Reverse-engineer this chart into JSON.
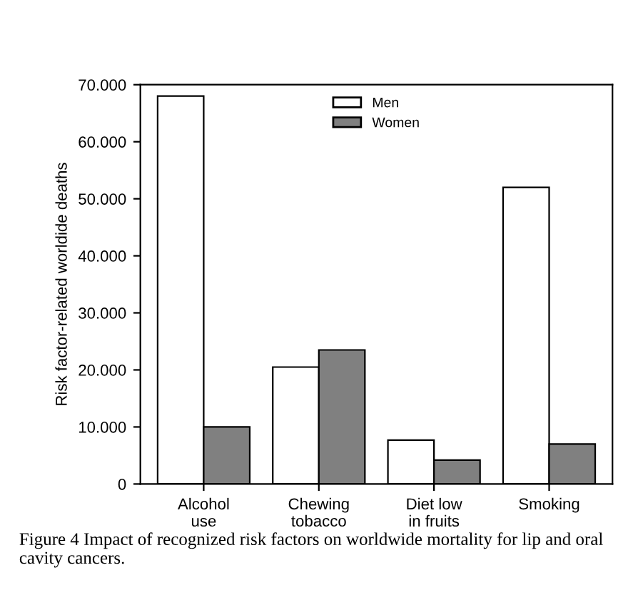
{
  "chart_data": {
    "type": "bar",
    "ylabel": "Risk factor-related worldide deaths",
    "categories": [
      "Alcohol\nuse",
      "Chewing\ntobacco",
      "Diet low\nin fruits",
      "Smoking"
    ],
    "series": [
      {
        "name": "Men",
        "color": "#ffffff",
        "values": [
          68000,
          20500,
          7700,
          52000
        ]
      },
      {
        "name": "Women",
        "color": "#808080",
        "values": [
          10000,
          23500,
          4200,
          7000
        ]
      }
    ],
    "ylim": [
      0,
      70000
    ],
    "yticks": [
      {
        "value": 0,
        "label": "0"
      },
      {
        "value": 10000,
        "label": "10.000"
      },
      {
        "value": 20000,
        "label": "20.000"
      },
      {
        "value": 30000,
        "label": "30.000"
      },
      {
        "value": 40000,
        "label": "40.000"
      },
      {
        "value": 50000,
        "label": "50.000"
      },
      {
        "value": 60000,
        "label": "60.000"
      },
      {
        "value": 70000,
        "label": "70.000"
      }
    ],
    "grid": false,
    "legend": "top",
    "annotations": [
      "Figure 4 Impact of recognized risk factors on worldwide mortality for lip and oral cavity cancers."
    ]
  }
}
